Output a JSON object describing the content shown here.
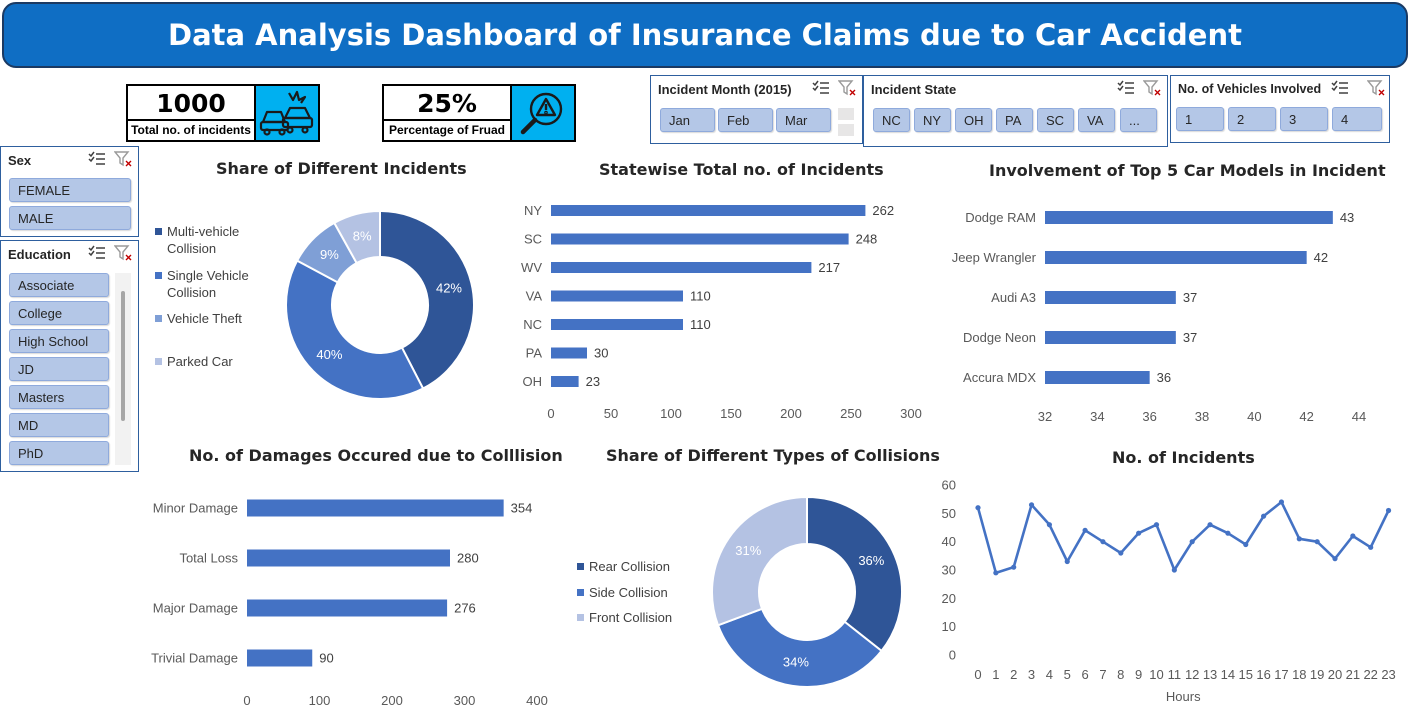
{
  "header": {
    "title": "Data Analysis Dashboard of Insurance Claims due to Car Accident"
  },
  "kpis": {
    "total": {
      "value": "1000",
      "label": "Total no. of incidents",
      "icon": "car-crash-icon"
    },
    "fraud": {
      "value": "25%",
      "label": "Percentage of Fruad",
      "icon": "fraud-search-icon"
    }
  },
  "slicers": {
    "month": {
      "title": "Incident Month (2015)",
      "items": [
        "Jan",
        "Feb",
        "Mar"
      ]
    },
    "state": {
      "title": "Incident State",
      "items": [
        "NC",
        "NY",
        "OH",
        "PA",
        "SC",
        "VA",
        "..."
      ]
    },
    "vehicles": {
      "title": "No. of Vehicles Involved",
      "items": [
        "1",
        "2",
        "3",
        "4"
      ]
    },
    "sex": {
      "title": "Sex",
      "items": [
        "FEMALE",
        "MALE"
      ]
    },
    "education": {
      "title": "Education",
      "items": [
        "Associate",
        "College",
        "High School",
        "JD",
        "Masters",
        "MD",
        "PhD"
      ]
    }
  },
  "colors": {
    "dark": "#2f5597",
    "mid": "#4472c4",
    "light": "#7f9fd6",
    "pale": "#b4c2e3",
    "header": "#0f6ec4",
    "accent": "#00b0f0"
  },
  "chart_data": [
    {
      "id": "incidents_share",
      "type": "pie",
      "title": "Share of Different Incidents",
      "categories": [
        "Multi-vehicle Collision",
        "Single Vehicle Collision",
        "Vehicle Theft",
        "Parked Car"
      ],
      "values": [
        42,
        40,
        9,
        8
      ],
      "labels": [
        "42%",
        "40%",
        "9%",
        "8%"
      ],
      "legend": [
        "Multi-vehicle\nCollision",
        "Single Vehicle\nCollision",
        "Vehicle Theft",
        "Parked Car"
      ]
    },
    {
      "id": "statewise",
      "type": "bar",
      "title": "Statewise Total no. of  Incidents",
      "categories": [
        "NY",
        "SC",
        "WV",
        "VA",
        "NC",
        "PA",
        "OH"
      ],
      "values": [
        262,
        248,
        217,
        110,
        110,
        30,
        23
      ],
      "xlim": [
        0,
        300
      ],
      "ticks": [
        0,
        50,
        100,
        150,
        200,
        250,
        300
      ]
    },
    {
      "id": "car_models",
      "type": "bar",
      "title": "Involvement of Top 5 Car Models in Incident",
      "categories": [
        "Dodge RAM",
        "Jeep Wrangler",
        "Audi A3",
        "Dodge Neon",
        "Accura MDX"
      ],
      "values": [
        43,
        42,
        37,
        37,
        36
      ],
      "xlim": [
        32,
        44
      ],
      "ticks": [
        32,
        34,
        36,
        38,
        40,
        42,
        44
      ]
    },
    {
      "id": "damages",
      "type": "bar",
      "title": "No. of Damages Occured due to Colllision",
      "categories": [
        "Minor Damage",
        "Total Loss",
        "Major Damage",
        "Trivial Damage"
      ],
      "values": [
        354,
        280,
        276,
        90
      ],
      "xlim": [
        0,
        400
      ],
      "ticks": [
        0,
        100,
        200,
        300,
        400
      ]
    },
    {
      "id": "collision_types",
      "type": "pie",
      "title": "Share of Different Types of Collisions",
      "categories": [
        "Rear Collision",
        "Side Collision",
        "Front Collision"
      ],
      "values": [
        36,
        34,
        31
      ],
      "labels": [
        "36%",
        "34%",
        "31%"
      ],
      "legend": [
        "Rear Collision",
        "Side Collision",
        "Front Collision"
      ]
    },
    {
      "id": "hourly",
      "type": "line",
      "title": "No. of Incidents",
      "xlabel": "Hours",
      "x": [
        0,
        1,
        2,
        3,
        4,
        5,
        6,
        7,
        8,
        9,
        10,
        11,
        12,
        13,
        14,
        15,
        16,
        17,
        18,
        19,
        20,
        21,
        22,
        23
      ],
      "values": [
        52,
        29,
        31,
        53,
        46,
        33,
        44,
        40,
        36,
        43,
        46,
        30,
        40,
        46,
        43,
        39,
        49,
        54,
        41,
        40,
        34,
        42,
        38,
        51
      ],
      "ylim": [
        0,
        60
      ],
      "ticks": [
        0,
        10,
        20,
        30,
        40,
        50,
        60
      ]
    }
  ]
}
